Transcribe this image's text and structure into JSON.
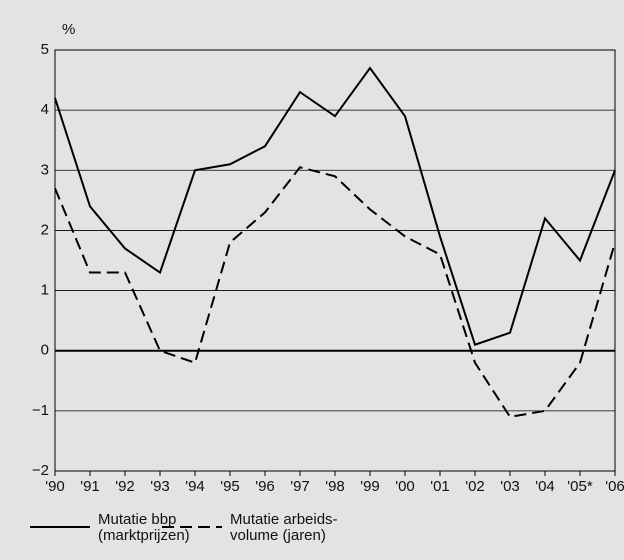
{
  "chart_data": {
    "type": "line",
    "y_label": "%",
    "categories": [
      "'90",
      "'91",
      "'92",
      "'93",
      "'94",
      "'95",
      "'96",
      "'97",
      "'98",
      "'99",
      "'00",
      "'01",
      "'02",
      "'03",
      "'04",
      "'05*",
      "'06"
    ],
    "series": [
      {
        "name": "Mutatie bbp (marktprijzen)",
        "color": "#000000",
        "dash": "solid",
        "values": [
          4.2,
          2.4,
          1.7,
          1.3,
          3.0,
          3.1,
          3.4,
          4.3,
          3.9,
          4.7,
          3.9,
          1.9,
          0.1,
          0.3,
          2.2,
          1.5,
          3.0
        ]
      },
      {
        "name": "Mutatie arbeids-volume (jaren)",
        "color": "#000000",
        "dash": "dashed",
        "values": [
          2.7,
          1.3,
          1.3,
          0.0,
          -0.2,
          1.8,
          2.3,
          3.05,
          2.9,
          2.35,
          1.9,
          1.6,
          -0.2,
          -1.1,
          -1.0,
          -0.2,
          1.8
        ]
      }
    ],
    "ylim": [
      -2,
      5
    ],
    "yticks": [
      {
        "value": -2,
        "label": "−2"
      },
      {
        "value": -1,
        "label": "−1"
      },
      0,
      1,
      2,
      3,
      4,
      5
    ],
    "grid": true
  }
}
